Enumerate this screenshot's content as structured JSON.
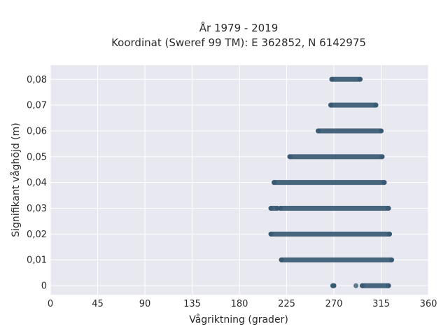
{
  "chart_data": {
    "type": "scatter",
    "title_line1": "År 1979 - 2019",
    "title_line2": "Koordinat (Sweref 99 TM): E 362852, N 6142975",
    "xlabel": "Vågriktning (grader)",
    "ylabel": "Signifikant våghöjd (m)",
    "xlim": [
      0,
      360
    ],
    "ylim": [
      -0.0035,
      0.0855
    ],
    "x_ticks": [
      0,
      45,
      90,
      135,
      180,
      225,
      270,
      315,
      360
    ],
    "y_ticks": [
      0,
      0.01,
      0.02,
      0.03,
      0.04,
      0.05,
      0.06,
      0.07,
      0.08
    ],
    "y_tick_labels": [
      "0",
      "0,01",
      "0,02",
      "0,03",
      "0,04",
      "0,05",
      "0,06",
      "0,07",
      "0,08"
    ],
    "grid": true,
    "marker_color": "#34566f",
    "background_color": "#e8e8f1",
    "bands": [
      {
        "y": 0.0,
        "x_ranges": [
          [
            269,
            270
          ],
          [
            291,
            291
          ],
          [
            297,
            322
          ]
        ]
      },
      {
        "y": 0.01,
        "x_ranges": [
          [
            220,
            325
          ]
        ]
      },
      {
        "y": 0.02,
        "x_ranges": [
          [
            210,
            323
          ]
        ]
      },
      {
        "y": 0.03,
        "x_ranges": [
          [
            210,
            216
          ],
          [
            219,
            322
          ]
        ]
      },
      {
        "y": 0.04,
        "x_ranges": [
          [
            213,
            318
          ]
        ]
      },
      {
        "y": 0.05,
        "x_ranges": [
          [
            228,
            316
          ]
        ]
      },
      {
        "y": 0.06,
        "x_ranges": [
          [
            255,
            315
          ]
        ]
      },
      {
        "y": 0.07,
        "x_ranges": [
          [
            267,
            310
          ]
        ]
      },
      {
        "y": 0.08,
        "x_ranges": [
          [
            268,
            295
          ]
        ]
      }
    ]
  }
}
